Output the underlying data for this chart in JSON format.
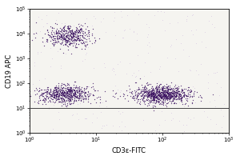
{
  "xlabel": "CD3ε-FITC",
  "ylabel": "CD19 APC",
  "bg_color": "#ffffff",
  "plot_bg": "#f5f4f0",
  "dot_color_dark": "#3a1060",
  "dot_color_mid": "#7040a0",
  "dot_color_light": "#c0a0d8",
  "x_log_min": 0.0,
  "x_log_max": 3.0,
  "y_log_min": 0.0,
  "y_log_max": 5.0,
  "hline_log_y": 1.0,
  "c1_x_log": 0.6,
  "c1_y_log": 3.9,
  "c1_nx": 450,
  "c1_sx": 0.18,
  "c1_sy": 0.22,
  "c2_x_log": 0.55,
  "c2_y_log": 1.55,
  "c2_nx": 650,
  "c2_sx": 0.2,
  "c2_sy": 0.18,
  "c3_x_log": 2.0,
  "c3_y_log": 1.55,
  "c3_nx": 900,
  "c3_sx": 0.22,
  "c3_sy": 0.18,
  "n_sparse": 250,
  "font_size": 6,
  "tick_font_size": 5,
  "xticks_log": [
    0,
    1,
    2,
    3
  ],
  "yticks_log": [
    0,
    1,
    2,
    3,
    4,
    5
  ]
}
